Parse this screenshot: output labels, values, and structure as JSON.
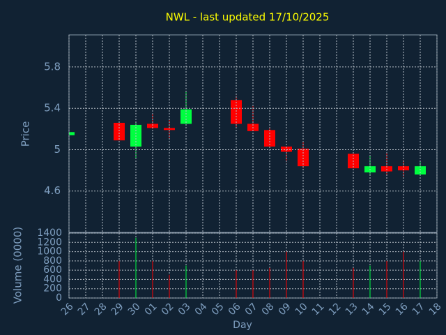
{
  "chart_data": {
    "type": "candlestick",
    "title": "NWL - last updated 17/10/2025",
    "ylabel": "Price",
    "y2label": "Volume (0000)",
    "xlabel": "Day",
    "categories": [
      "26",
      "27",
      "28",
      "29",
      "30",
      "01",
      "02",
      "03",
      "04",
      "05",
      "06",
      "07",
      "08",
      "09",
      "10",
      "11",
      "12",
      "13",
      "14",
      "15",
      "16",
      "17",
      "18"
    ],
    "open": [
      5.14,
      null,
      null,
      5.26,
      5.03,
      5.25,
      5.21,
      5.25,
      null,
      null,
      5.48,
      5.25,
      5.19,
      5.03,
      5.01,
      null,
      null,
      4.96,
      4.78,
      4.84,
      4.84,
      4.76,
      null
    ],
    "high": [
      5.17,
      null,
      null,
      5.26,
      5.26,
      5.35,
      5.29,
      5.57,
      null,
      null,
      5.52,
      5.42,
      5.22,
      5.03,
      5.08,
      null,
      null,
      4.96,
      4.94,
      4.97,
      4.9,
      4.88,
      null
    ],
    "low": [
      5.14,
      null,
      null,
      5.09,
      4.92,
      5.2,
      5.1,
      5.25,
      null,
      null,
      5.21,
      5.18,
      5.02,
      4.88,
      4.82,
      null,
      null,
      4.82,
      4.75,
      4.76,
      4.74,
      4.76,
      null
    ],
    "close": [
      5.17,
      null,
      null,
      5.09,
      5.24,
      5.21,
      5.19,
      5.39,
      null,
      null,
      5.25,
      5.18,
      5.03,
      4.98,
      4.84,
      null,
      null,
      4.82,
      4.84,
      4.79,
      4.8,
      4.84,
      null
    ],
    "volume": [
      null,
      null,
      null,
      800,
      1300,
      800,
      500,
      700,
      null,
      null,
      600,
      600,
      650,
      1000,
      800,
      null,
      null,
      650,
      700,
      800,
      1000,
      800,
      null
    ],
    "up_color": "#00ff40",
    "down_color": "#ff0000",
    "ylim": [
      4.2,
      6.11
    ],
    "yticks": [
      4.6,
      5,
      5.4,
      5.8
    ],
    "y2lim": [
      0,
      1400
    ],
    "y2ticks": [
      0,
      200,
      400,
      600,
      800,
      1000,
      1200,
      1400
    ],
    "grid": true
  }
}
